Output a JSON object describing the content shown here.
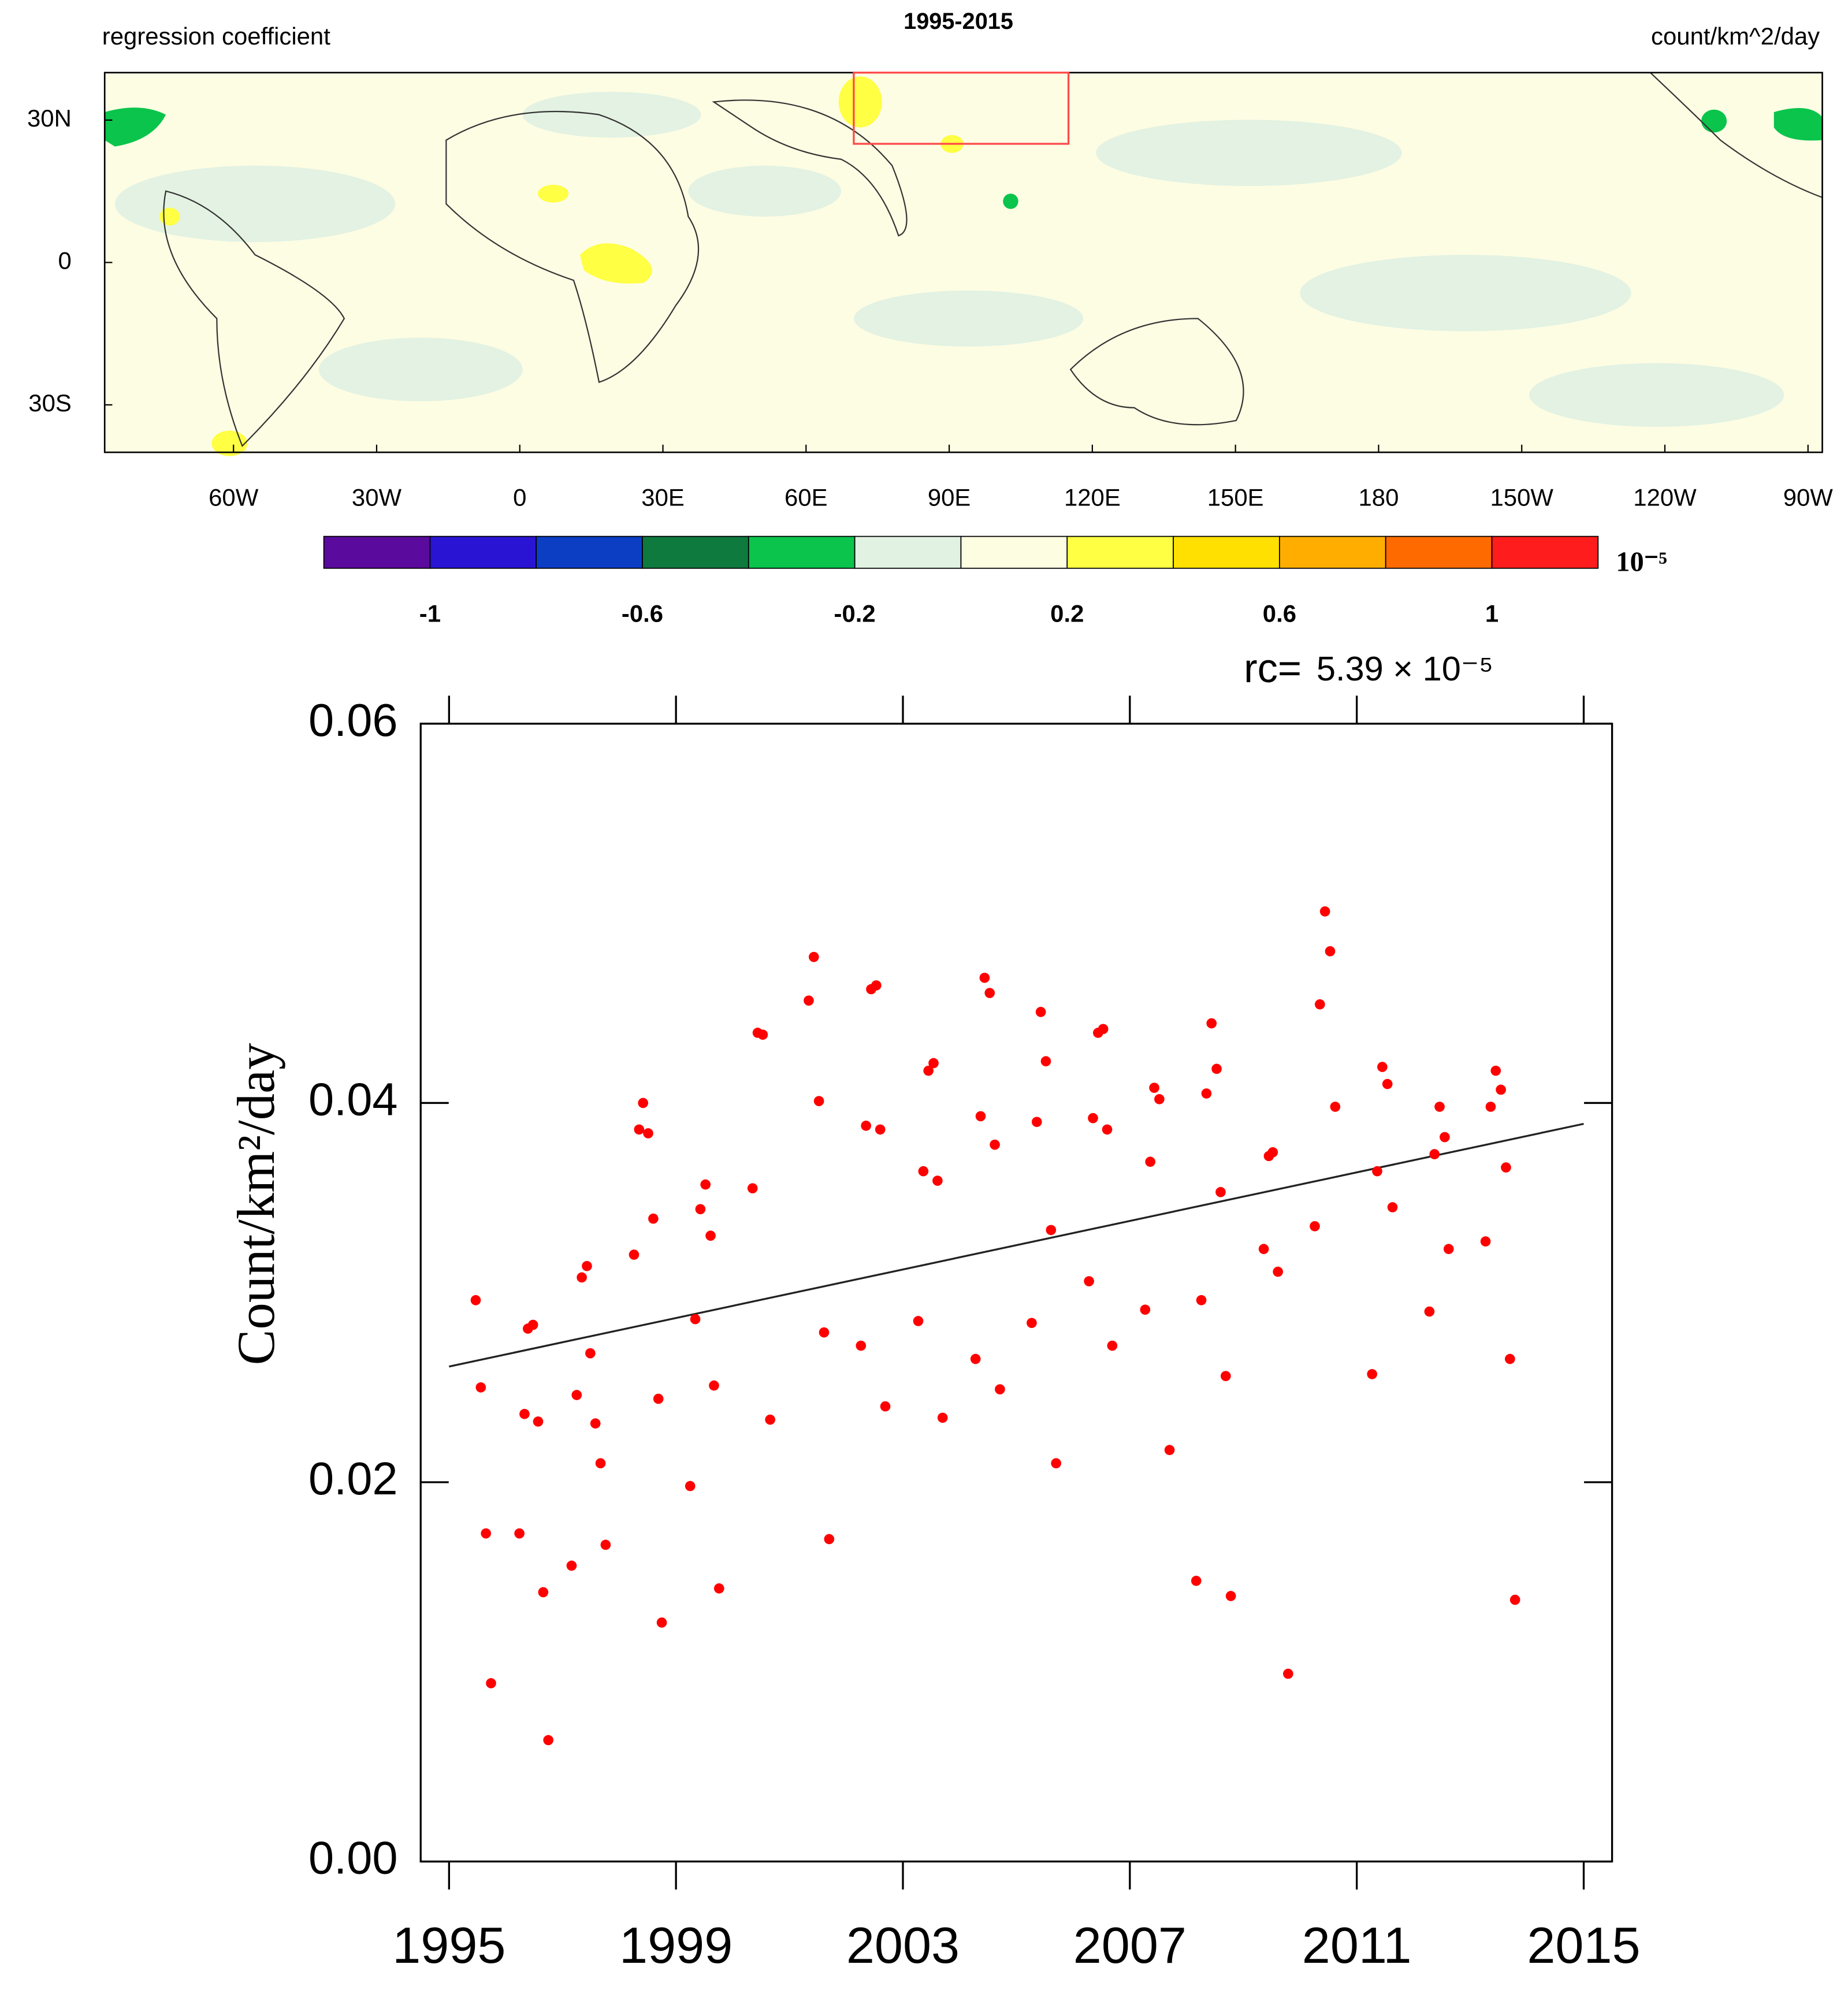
{
  "chart_data": [
    {
      "type": "map",
      "title": "1995-2015",
      "left_title": "regression coefficient",
      "right_title": "count/km^2/day",
      "xlim": [
        -87,
        273
      ],
      "ylim": [
        -40,
        40
      ],
      "xticks": [
        {
          "value": -60,
          "label": "60W"
        },
        {
          "value": -30,
          "label": "30W"
        },
        0,
        {
          "value": 30,
          "label": "30E"
        },
        {
          "value": 60,
          "label": "60E"
        },
        {
          "value": 90,
          "label": "90E"
        },
        {
          "value": 120,
          "label": "120E"
        },
        {
          "value": 150,
          "label": "150E"
        },
        180,
        {
          "value": 210,
          "label": "150W"
        },
        {
          "value": 240,
          "label": "120W"
        },
        {
          "value": 270,
          "label": "90W"
        }
      ],
      "yticks": [
        {
          "value": 30,
          "label": "30N"
        },
        0,
        {
          "value": -30,
          "label": "30S"
        }
      ],
      "region": {
        "lon": [
          70,
          115
        ],
        "lat": [
          25,
          40
        ],
        "color": "#ff4a4a"
      },
      "colorbar": {
        "levels": [
          -1,
          -0.8,
          -0.6,
          -0.4,
          -0.2,
          0,
          0.2,
          0.4,
          0.6,
          0.8,
          1
        ],
        "colors": [
          "#5a0a9c",
          "#2a14d4",
          "#0c3ec4",
          "#0e7a3e",
          "#0ac44c",
          "#e2f2e2",
          "#fdfde2",
          "#ffff44",
          "#ffe000",
          "#ffae00",
          "#ff6a00",
          "#ff1c1c"
        ],
        "ticks": [
          -1,
          -0.6,
          -0.2,
          0.2,
          0.6,
          1
        ],
        "label": "10⁻⁵"
      }
    },
    {
      "type": "scatter",
      "xlim": [
        1994.5,
        2015.5
      ],
      "ylim": [
        0,
        0.06
      ],
      "xticks": [
        1995,
        1999,
        2003,
        2007,
        2011,
        2015
      ],
      "yticks": [
        {
          "value": 0,
          "label": "0.00"
        },
        0.02,
        0.04,
        0.06
      ],
      "ylabel": "Count/km²/day",
      "annotation_label": "rc=",
      "annotation_value": "5.39 × 10⁻⁵",
      "color": "#ff0000",
      "x": [
        1995.47,
        1995.56,
        1995.65,
        1995.74,
        1996.24,
        1996.33,
        1996.39,
        1996.48,
        1996.57,
        1996.66,
        1996.75,
        1997.16,
        1997.25,
        1997.34,
        1997.43,
        1997.49,
        1997.58,
        1997.67,
        1997.76,
        1998.26,
        1998.35,
        1998.42,
        1998.51,
        1998.6,
        1998.69,
        1998.75,
        1999.25,
        1999.34,
        1999.43,
        1999.52,
        1999.61,
        1999.67,
        1999.76,
        2000.35,
        2000.44,
        2000.53,
        2000.66,
        2001.34,
        2001.43,
        2001.52,
        2001.61,
        2001.7,
        2002.26,
        2002.35,
        2002.44,
        2002.53,
        2002.6,
        2002.69,
        2003.27,
        2003.36,
        2003.45,
        2003.54,
        2003.61,
        2003.7,
        2004.28,
        2004.37,
        2004.44,
        2004.53,
        2004.62,
        2004.71,
        2005.27,
        2005.36,
        2005.43,
        2005.52,
        2005.61,
        2005.7,
        2006.28,
        2006.35,
        2006.44,
        2006.53,
        2006.6,
        2006.69,
        2007.27,
        2007.36,
        2007.43,
        2007.52,
        2007.7,
        2008.17,
        2008.26,
        2008.35,
        2008.44,
        2008.53,
        2008.6,
        2008.69,
        2008.78,
        2009.36,
        2009.45,
        2009.52,
        2009.61,
        2009.79,
        2010.26,
        2010.35,
        2010.44,
        2010.53,
        2010.62,
        2011.27,
        2011.36,
        2011.45,
        2011.54,
        2011.63,
        2012.28,
        2012.37,
        2012.46,
        2012.55,
        2012.62,
        2013.27,
        2013.36,
        2013.45,
        2013.54,
        2013.63,
        2013.7,
        2013.79
      ],
      "values": [
        0.0296,
        0.025,
        0.0173,
        0.0094,
        0.0173,
        0.0236,
        0.0281,
        0.0283,
        0.0232,
        0.0142,
        0.0064,
        0.0156,
        0.0246,
        0.0308,
        0.0314,
        0.0268,
        0.0231,
        0.021,
        0.0167,
        0.032,
        0.0386,
        0.04,
        0.0384,
        0.0339,
        0.0244,
        0.0126,
        0.0198,
        0.0286,
        0.0344,
        0.0357,
        0.033,
        0.0251,
        0.0144,
        0.0355,
        0.0437,
        0.0436,
        0.0233,
        0.0454,
        0.0477,
        0.0401,
        0.0279,
        0.017,
        0.0272,
        0.0388,
        0.046,
        0.0462,
        0.0386,
        0.024,
        0.0285,
        0.0364,
        0.0417,
        0.0421,
        0.0359,
        0.0234,
        0.0265,
        0.0393,
        0.0466,
        0.0458,
        0.0378,
        0.0249,
        0.0284,
        0.039,
        0.0448,
        0.0422,
        0.0333,
        0.021,
        0.0306,
        0.0392,
        0.0437,
        0.0439,
        0.0386,
        0.0272,
        0.0291,
        0.0369,
        0.0408,
        0.0402,
        0.0217,
        0.0148,
        0.0296,
        0.0405,
        0.0442,
        0.0418,
        0.0353,
        0.0256,
        0.014,
        0.0323,
        0.0372,
        0.0374,
        0.0311,
        0.0099,
        0.0335,
        0.0452,
        0.0501,
        0.048,
        0.0398,
        0.0257,
        0.0364,
        0.0419,
        0.041,
        0.0345,
        0.029,
        0.0373,
        0.0398,
        0.0382,
        0.0323,
        0.0327,
        0.0398,
        0.0417,
        0.0407,
        0.0366,
        0.0265,
        0.0138
      ],
      "trend": {
        "x": [
          1995,
          2015
        ],
        "values": [
          0.0261,
          0.0389
        ],
        "color": "#222222"
      }
    }
  ]
}
